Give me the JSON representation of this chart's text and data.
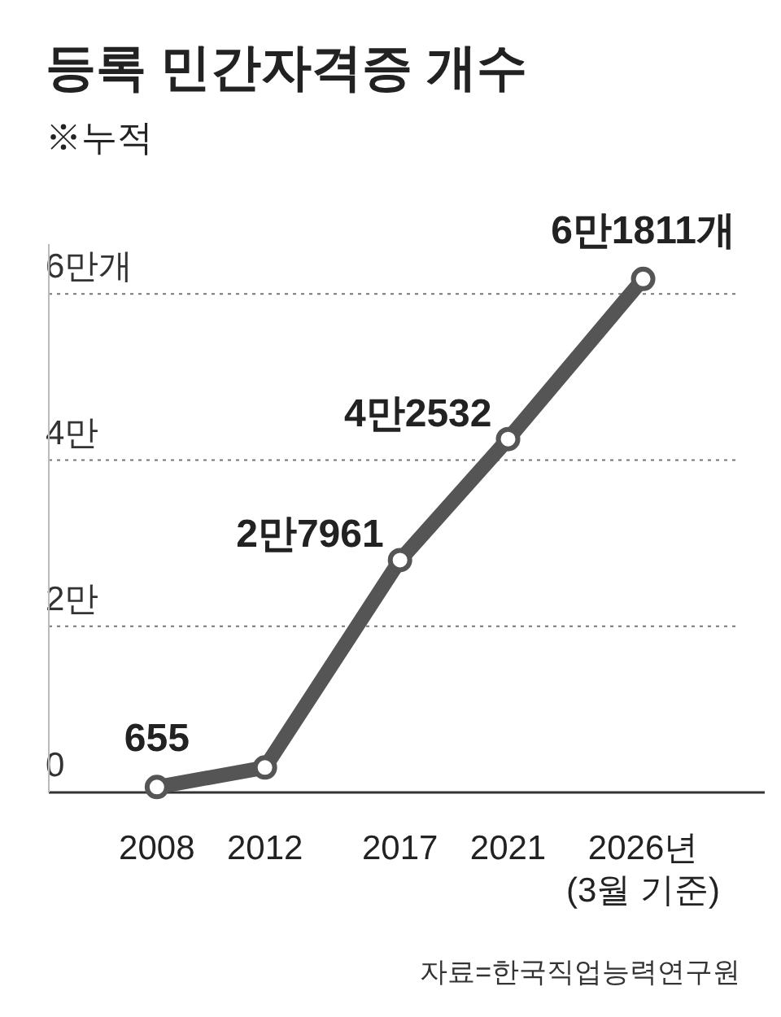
{
  "chart_data": {
    "type": "line",
    "title": "등록 민간자격증 개수",
    "subtitle": "※누적",
    "x": [
      2008,
      2012,
      2017,
      2021,
      2026
    ],
    "series": [
      {
        "color": "#555555",
        "values": [
          0.0655,
          0.3,
          2.7961,
          4.2532,
          6.1811
        ]
      }
    ],
    "value_labels": [
      "655",
      null,
      "2만7961",
      "4만2532",
      "6만1811개"
    ],
    "xlim": [
      2004,
      2030.5
    ],
    "ylim": [
      0,
      6.6
    ],
    "xticks": [
      2008,
      2012,
      2017,
      2021,
      {
        "value": 2026,
        "label": "2026년\n(3월 기준)"
      }
    ],
    "yticks": [
      0,
      {
        "value": 2,
        "label": "2만"
      },
      {
        "value": 4,
        "label": "4만"
      },
      {
        "value": 6,
        "label": "6만개"
      }
    ],
    "grid": "y",
    "marker": "circle",
    "line_style": "solid",
    "annotations": [
      "자료=한국직업능력연구원"
    ]
  }
}
